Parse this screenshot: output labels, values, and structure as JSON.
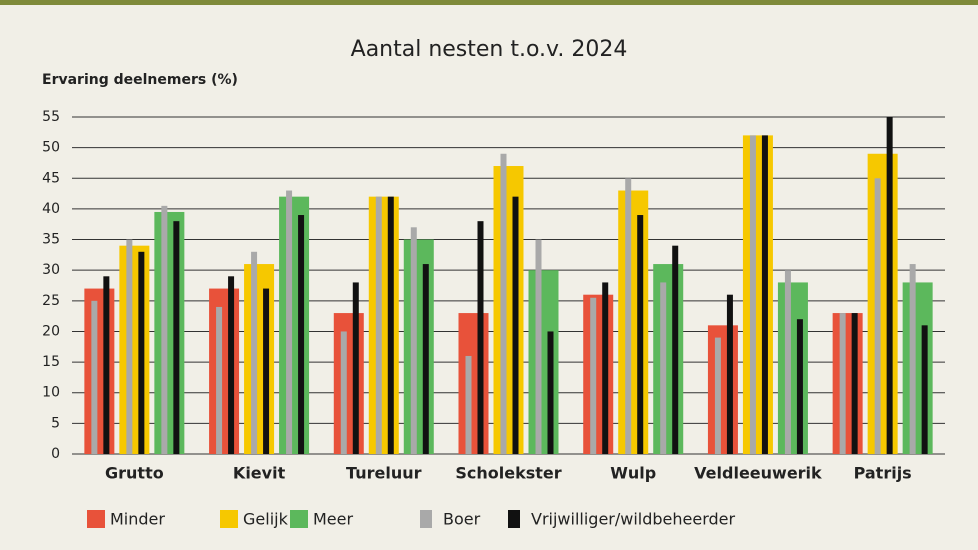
{
  "chart_data": {
    "type": "grouped-bar-overlay",
    "title": "Aantal nesten t.o.v. 2024",
    "y_label": "Ervaring deelnemers (%)",
    "categories": [
      "Grutto",
      "Kievit",
      "Tureluur",
      "Scholekster",
      "Wulp",
      "Veldleeuwerik",
      "Patrijs"
    ],
    "series": [
      {
        "name": "Minder",
        "color": "#e8523a",
        "values": [
          27,
          27,
          23,
          23,
          26,
          21,
          23
        ]
      },
      {
        "name": "Gelijk",
        "color": "#f6c800",
        "values": [
          34,
          31,
          42,
          47,
          43,
          52,
          49
        ]
      },
      {
        "name": "Meer",
        "color": "#5cb85c",
        "values": [
          39.5,
          42,
          35,
          30,
          31,
          28,
          28
        ]
      }
    ],
    "overlay_series": [
      {
        "name": "Boer",
        "color": "#a9a9a9",
        "values": [
          [
            25,
            35,
            40.5
          ],
          [
            24,
            33,
            43
          ],
          [
            20,
            42,
            37
          ],
          [
            16,
            49,
            35
          ],
          [
            25.5,
            45,
            28
          ],
          [
            19,
            52,
            30
          ],
          [
            23,
            45,
            31
          ]
        ]
      },
      {
        "name": "Vrijwilliger/wildbeheerder",
        "color": "#111111",
        "values": [
          [
            29,
            33,
            38
          ],
          [
            29,
            27,
            39
          ],
          [
            28,
            42,
            31
          ],
          [
            38,
            42,
            20
          ],
          [
            28,
            39,
            34
          ],
          [
            26,
            52,
            22
          ],
          [
            23,
            55,
            21
          ]
        ]
      }
    ],
    "ylim": [
      0,
      55
    ],
    "yticks": [
      0,
      5,
      10,
      15,
      20,
      25,
      30,
      35,
      40,
      45,
      50,
      55
    ],
    "grid": true
  }
}
